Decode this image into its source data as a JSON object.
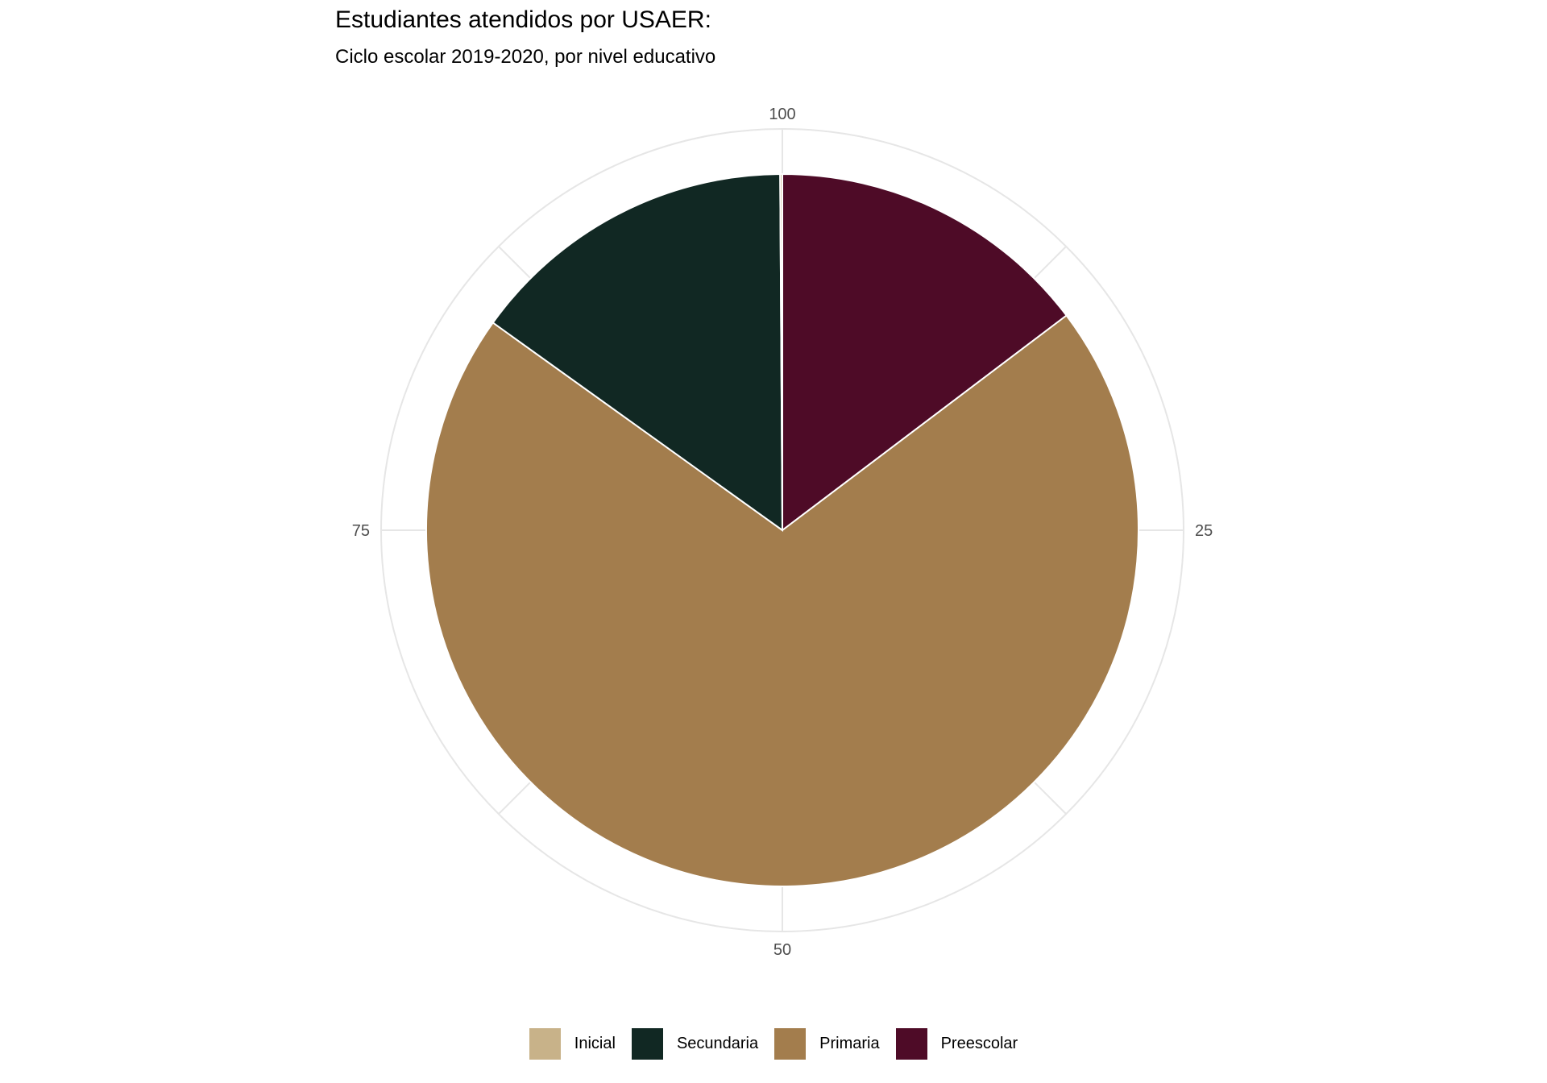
{
  "chart_data": {
    "type": "pie",
    "title": "Estudiantes atendidos por USAER:",
    "subtitle": "Ciclo escolar 2019-2020, por nivel educativo",
    "axis_ticks": [
      {
        "value": 100,
        "label": "100"
      },
      {
        "value": 25,
        "label": "25"
      },
      {
        "value": 50,
        "label": "50"
      },
      {
        "value": 75,
        "label": "75"
      }
    ],
    "slices": [
      {
        "label": "Preescolar",
        "value": 14.7,
        "color": "#4E0B27"
      },
      {
        "label": "Primaria",
        "value": 70.2,
        "color": "#A37D4D"
      },
      {
        "label": "Secundaria",
        "value": 15.0,
        "color": "#112823"
      },
      {
        "label": "Inicial",
        "value": 0.1,
        "color": "#C8B289"
      }
    ],
    "legend": {
      "position": "bottom",
      "items": [
        {
          "label": "Inicial",
          "color": "#C8B289"
        },
        {
          "label": "Secundaria",
          "color": "#112823"
        },
        {
          "label": "Primaria",
          "color": "#A37D4D"
        },
        {
          "label": "Preescolar",
          "color": "#4E0B27"
        }
      ]
    },
    "grid": true
  }
}
